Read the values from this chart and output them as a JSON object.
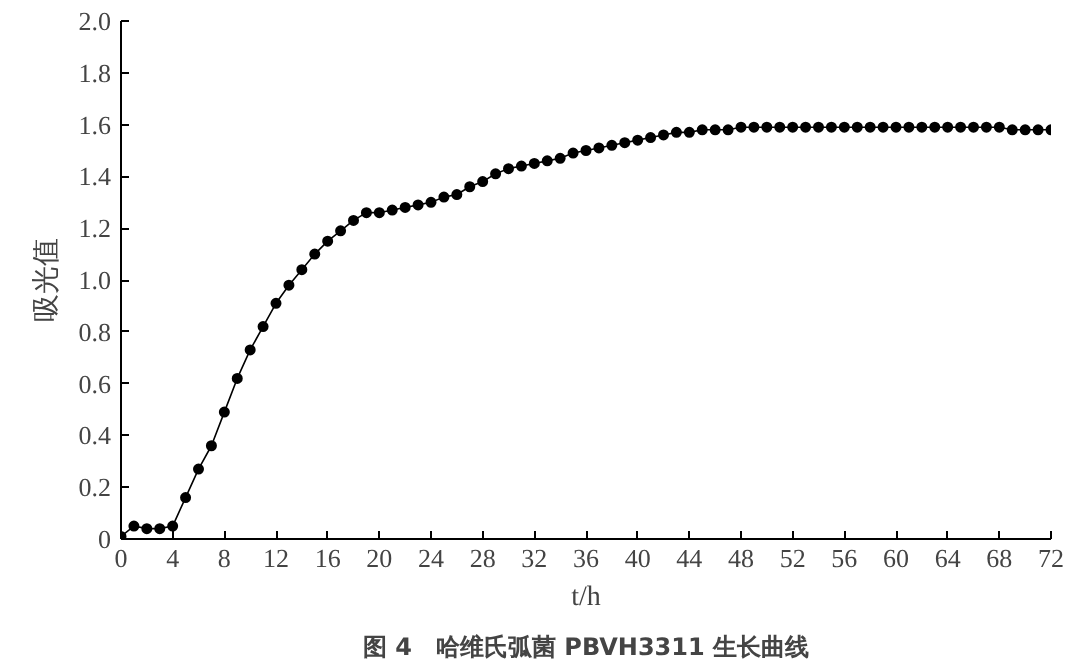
{
  "chart_data": {
    "type": "line",
    "title": "图 4　哈维氏弧菌 PBVH3311 生长曲线",
    "xlabel": "t/h",
    "ylabel": "吸光值",
    "x": [
      0,
      1,
      2,
      3,
      4,
      5,
      6,
      7,
      8,
      9,
      10,
      11,
      12,
      13,
      14,
      15,
      16,
      17,
      18,
      19,
      20,
      21,
      22,
      23,
      24,
      25,
      26,
      27,
      28,
      29,
      30,
      31,
      32,
      33,
      34,
      35,
      36,
      37,
      38,
      39,
      40,
      41,
      42,
      43,
      44,
      45,
      46,
      47,
      48,
      49,
      50,
      51,
      52,
      53,
      54,
      55,
      56,
      57,
      58,
      59,
      60,
      61,
      62,
      63,
      64,
      65,
      66,
      67,
      68,
      69,
      70,
      71,
      72
    ],
    "series": [
      {
        "color": "#000000",
        "values": [
          0.01,
          0.05,
          0.04,
          0.04,
          0.05,
          0.16,
          0.27,
          0.36,
          0.49,
          0.62,
          0.73,
          0.82,
          0.91,
          0.98,
          1.04,
          1.1,
          1.15,
          1.19,
          1.23,
          1.26,
          1.26,
          1.27,
          1.28,
          1.29,
          1.3,
          1.32,
          1.33,
          1.36,
          1.38,
          1.41,
          1.43,
          1.44,
          1.45,
          1.46,
          1.47,
          1.49,
          1.5,
          1.51,
          1.52,
          1.53,
          1.54,
          1.55,
          1.56,
          1.57,
          1.57,
          1.58,
          1.58,
          1.58,
          1.59,
          1.59,
          1.59,
          1.59,
          1.59,
          1.59,
          1.59,
          1.59,
          1.59,
          1.59,
          1.59,
          1.59,
          1.59,
          1.59,
          1.59,
          1.59,
          1.59,
          1.59,
          1.59,
          1.59,
          1.59,
          1.58,
          1.58,
          1.58,
          1.58
        ]
      }
    ],
    "xlim": [
      0,
      72
    ],
    "xticks": [
      0,
      4,
      8,
      12,
      16,
      20,
      24,
      28,
      32,
      36,
      40,
      44,
      48,
      52,
      56,
      60,
      64,
      68,
      72
    ],
    "ylim": [
      0,
      2.0
    ],
    "yticks": [
      {
        "value": 0,
        "label": "0"
      },
      0.2,
      0.4,
      0.6,
      0.8,
      {
        "value": 1.0,
        "label": "1.0"
      },
      1.2,
      1.4,
      1.6,
      1.8,
      {
        "value": 2.0,
        "label": "2.0"
      }
    ],
    "grid": false,
    "marker": "circle",
    "line_style": "solid"
  }
}
